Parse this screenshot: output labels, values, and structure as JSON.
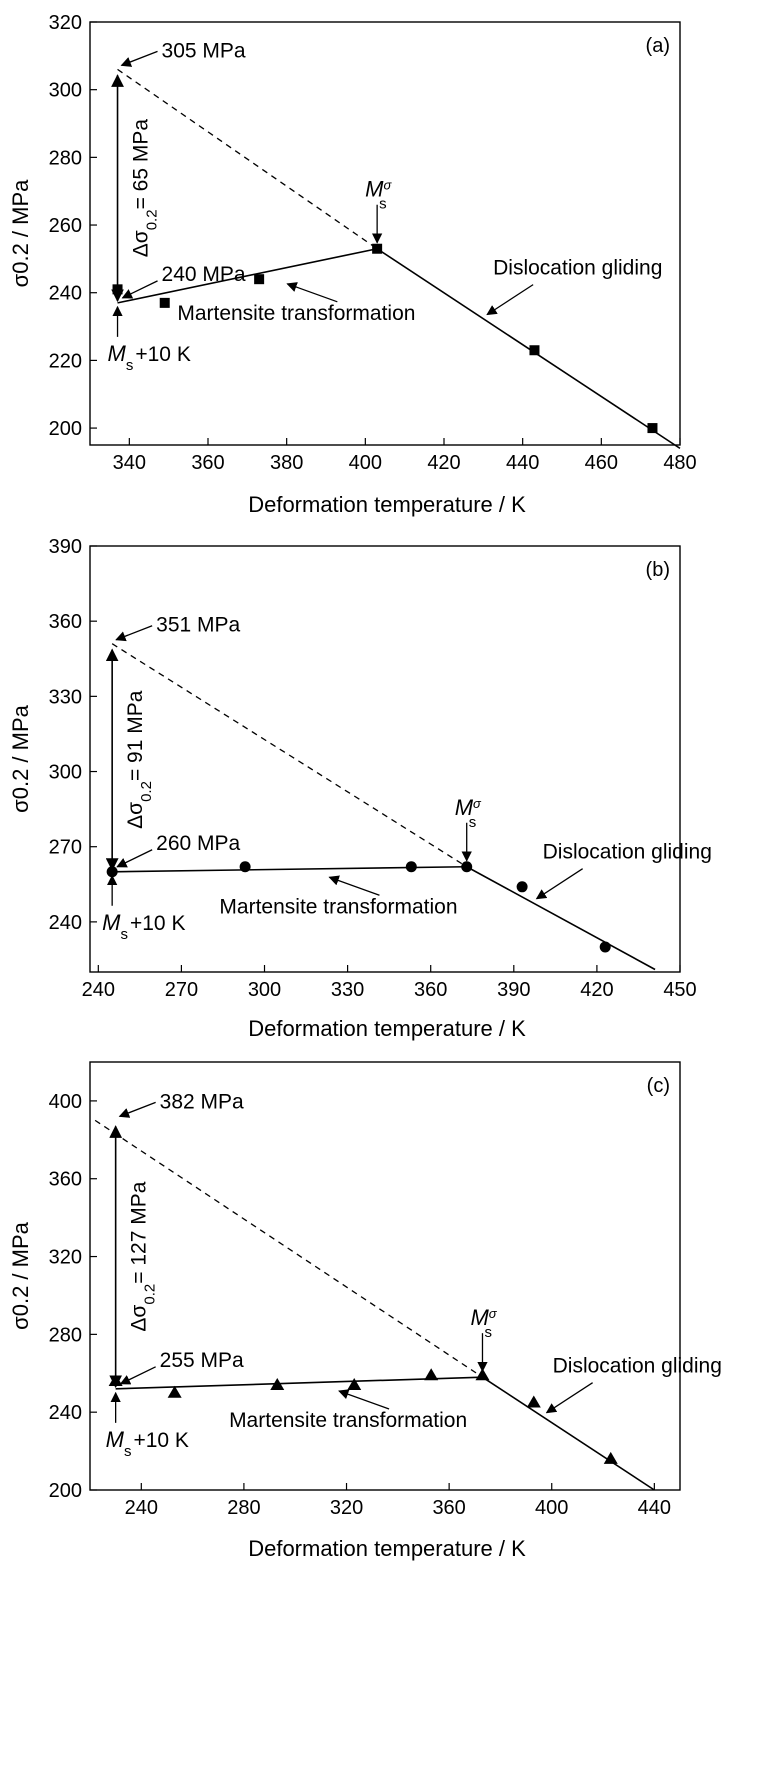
{
  "xlabel_text": "Deformation temperature / K",
  "chart_data": [
    {
      "type": "scatter",
      "panel": "(a)",
      "marker": "square",
      "xlabel": "Deformation temperature / K",
      "ylabel": "σ0.2 / MPa",
      "xlim": [
        330,
        480
      ],
      "ylim": [
        195,
        320
      ],
      "xticks": [
        340,
        360,
        380,
        400,
        420,
        440,
        460,
        480
      ],
      "yticks": [
        200,
        220,
        240,
        260,
        280,
        300,
        320
      ],
      "points": [
        {
          "x": 337,
          "y": 241
        },
        {
          "x": 349,
          "y": 237
        },
        {
          "x": 373,
          "y": 244
        },
        {
          "x": 403,
          "y": 253
        },
        {
          "x": 443,
          "y": 223
        },
        {
          "x": 473,
          "y": 200
        }
      ],
      "fit_martensite": [
        [
          337,
          237
        ],
        [
          403,
          253
        ]
      ],
      "fit_dislocation": [
        [
          403,
          253
        ],
        [
          480,
          194
        ]
      ],
      "dashed_extrapolation": [
        [
          337,
          306
        ],
        [
          403,
          253
        ]
      ],
      "ms_arrow_x": 337,
      "ms_sigma_x": 403,
      "annotations": {
        "upper": "305 MPa",
        "lower": "240 MPa",
        "delta": "= 65 MPa",
        "martensite": "Martensite transformation",
        "dislocation": "Dislocation gliding",
        "ms_plus": "+10 K",
        "ms_sigma_sup": "σ",
        "ms_sub": "s"
      }
    },
    {
      "type": "scatter",
      "panel": "(b)",
      "marker": "circle",
      "xlabel": "Deformation temperature / K",
      "ylabel": "σ0.2 / MPa",
      "xlim": [
        237,
        450
      ],
      "ylim": [
        220,
        390
      ],
      "xticks": [
        240,
        270,
        300,
        330,
        360,
        390,
        420,
        450
      ],
      "yticks": [
        240,
        270,
        300,
        330,
        360,
        390
      ],
      "points": [
        {
          "x": 245,
          "y": 260
        },
        {
          "x": 293,
          "y": 262
        },
        {
          "x": 353,
          "y": 262
        },
        {
          "x": 373,
          "y": 262
        },
        {
          "x": 393,
          "y": 254
        },
        {
          "x": 423,
          "y": 230
        }
      ],
      "fit_martensite": [
        [
          245,
          260
        ],
        [
          373,
          262
        ]
      ],
      "fit_dislocation": [
        [
          373,
          262
        ],
        [
          441,
          221
        ]
      ],
      "dashed_extrapolation": [
        [
          245,
          351
        ],
        [
          373,
          262
        ]
      ],
      "ms_arrow_x": 245,
      "ms_sigma_x": 373,
      "annotations": {
        "upper": "351 MPa",
        "lower": "260 MPa",
        "delta": "= 91 MPa",
        "martensite": "Martensite transformation",
        "dislocation": "Dislocation gliding",
        "ms_plus": "+10 K",
        "ms_sigma_sup": "σ",
        "ms_sub": "s"
      }
    },
    {
      "type": "scatter",
      "panel": "(c)",
      "marker": "triangle",
      "xlabel": "Deformation temperature / K",
      "ylabel": "σ0.2 / MPa",
      "xlim": [
        220,
        450
      ],
      "ylim": [
        200,
        420
      ],
      "xticks": [
        240,
        280,
        320,
        360,
        400,
        440
      ],
      "yticks": [
        200,
        240,
        280,
        320,
        360,
        400
      ],
      "points": [
        {
          "x": 230,
          "y": 256
        },
        {
          "x": 253,
          "y": 250
        },
        {
          "x": 293,
          "y": 254
        },
        {
          "x": 323,
          "y": 254
        },
        {
          "x": 353,
          "y": 259
        },
        {
          "x": 373,
          "y": 259
        },
        {
          "x": 393,
          "y": 245
        },
        {
          "x": 423,
          "y": 216
        }
      ],
      "fit_martensite": [
        [
          230,
          252
        ],
        [
          373,
          258
        ]
      ],
      "fit_dislocation": [
        [
          373,
          258
        ],
        [
          440,
          200
        ]
      ],
      "dashed_extrapolation": [
        [
          222,
          390
        ],
        [
          373,
          258
        ]
      ],
      "ms_arrow_x": 230,
      "ms_sigma_x": 373,
      "annotations": {
        "upper": "382 MPa",
        "lower": "255 MPa",
        "delta": "= 127 MPa",
        "martensite": "Martensite transformation",
        "dislocation": "Dislocation gliding",
        "ms_plus": "+10 K",
        "ms_sigma_sup": "σ",
        "ms_sub": "s"
      }
    }
  ]
}
